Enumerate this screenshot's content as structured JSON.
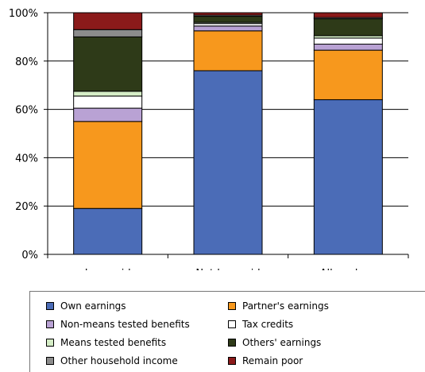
{
  "chart_data": {
    "type": "bar",
    "stacked": true,
    "categories": [
      "Low paid",
      "Not low paid",
      "All workers"
    ],
    "ylim": [
      0,
      100
    ],
    "yticks": [
      "0%",
      "20%",
      "40%",
      "60%",
      "80%",
      "100%"
    ],
    "grid": true,
    "legend_position": "bottom",
    "series": [
      {
        "name": "Own earnings",
        "color": "#4B6CB7",
        "values": [
          19,
          76,
          64
        ]
      },
      {
        "name": "Partner's earnings",
        "color": "#F7981D",
        "values": [
          36,
          16.5,
          20.5
        ]
      },
      {
        "name": "Non-means tested benefits",
        "color": "#B9A2D4",
        "values": [
          5.5,
          2,
          2.5
        ]
      },
      {
        "name": "Tax credits",
        "color": "#FFFFFF",
        "values": [
          5,
          1,
          2.5
        ]
      },
      {
        "name": "Means tested benefits",
        "color": "#D5EDC6",
        "values": [
          2,
          0.5,
          1
        ]
      },
      {
        "name": "Others' earnings",
        "color": "#2E3A18",
        "values": [
          22.5,
          2.5,
          7
        ]
      },
      {
        "name": "Other household income",
        "color": "#8C8C8C",
        "values": [
          3,
          0.5,
          0.5
        ]
      },
      {
        "name": "Remain poor",
        "color": "#8B1A1A",
        "values": [
          7,
          1,
          2
        ]
      }
    ]
  }
}
